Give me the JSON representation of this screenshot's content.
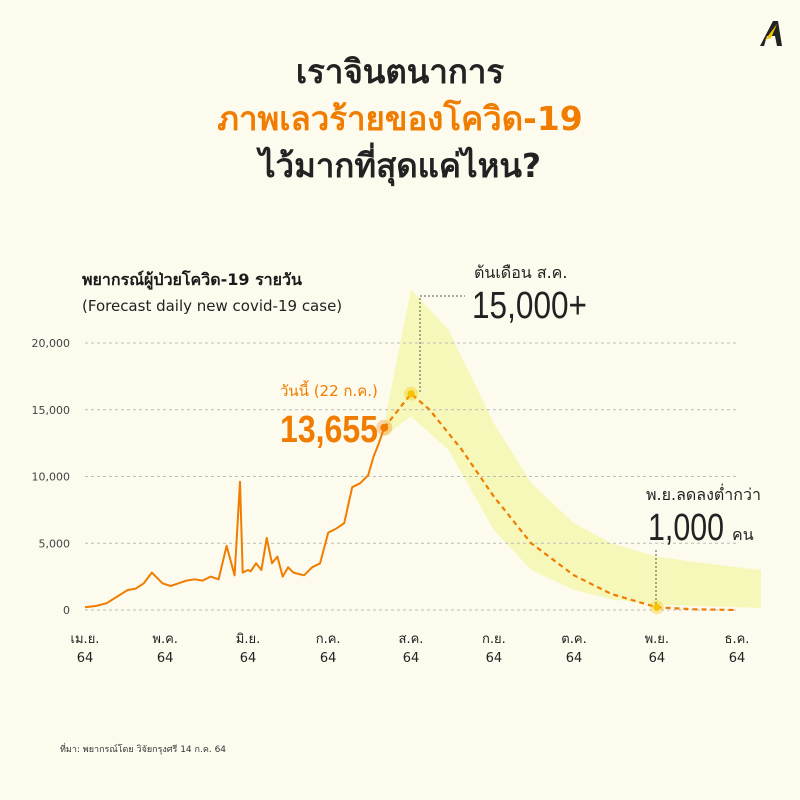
{
  "title": {
    "line1": "เราจินตนาการ",
    "line2": "ภาพเลวร้ายของโควิด-19",
    "line3": "ไว้มากที่สุดแค่ไหน?"
  },
  "subtitle": {
    "thai": "พยากรณ์ผู้ป่วยโควิด-19 รายวัน",
    "english": "(Forecast daily new covid-19 case)"
  },
  "source_note": "ที่มา: พยากรณ์โดย วิจัยกรุงศรี 14 ก.ค. 64",
  "colors": {
    "accent": "#f07c00",
    "forecast_band": "#f5f7b0",
    "background": "#fdfbee",
    "marker_yellow": "#f5c400"
  },
  "annotations": {
    "today_label": "วันนี้ (22 ก.ค.)",
    "today_value": "13,655",
    "peak_label": "ต้นเดือน ส.ค.",
    "peak_value": "15,000+",
    "low_label": "พ.ย.ลดลงต่ำกว่า",
    "low_value": "1,000",
    "low_unit": "คน"
  },
  "chart_data": {
    "type": "line",
    "ylim": [
      0,
      20000
    ],
    "yticks": [
      0,
      5000,
      10000,
      15000,
      20000
    ],
    "ytick_labels": [
      "0",
      "5,000",
      "10,000",
      "15,000",
      "20,000"
    ],
    "xtick_labels": [
      [
        "เม.ย.",
        "64"
      ],
      [
        "พ.ค.",
        "64"
      ],
      [
        "มิ.ย.",
        "64"
      ],
      [
        "ก.ค.",
        "64"
      ],
      [
        "ส.ค.",
        "64"
      ],
      [
        "ก.ย.",
        "64"
      ],
      [
        "ต.ค.",
        "64"
      ],
      [
        "พ.ย.",
        "64"
      ],
      [
        "ธ.ค.",
        "64"
      ]
    ],
    "grid": true,
    "series": [
      {
        "kind": "actual",
        "x": [
          "2021-04-01",
          "2021-04-05",
          "2021-04-09",
          "2021-04-13",
          "2021-04-17",
          "2021-04-20",
          "2021-04-23",
          "2021-04-26",
          "2021-04-30",
          "2021-05-03",
          "2021-05-06",
          "2021-05-09",
          "2021-05-12",
          "2021-05-15",
          "2021-05-18",
          "2021-05-21",
          "2021-05-24",
          "2021-05-27",
          "2021-05-29",
          "2021-05-30",
          "2021-06-01",
          "2021-06-02",
          "2021-06-04",
          "2021-06-06",
          "2021-06-08",
          "2021-06-10",
          "2021-06-12",
          "2021-06-14",
          "2021-06-16",
          "2021-06-18",
          "2021-06-20",
          "2021-06-22",
          "2021-06-25",
          "2021-06-28",
          "2021-07-01",
          "2021-07-04",
          "2021-07-07",
          "2021-07-10",
          "2021-07-13",
          "2021-07-16",
          "2021-07-18",
          "2021-07-20",
          "2021-07-22"
        ],
        "values": [
          200,
          300,
          500,
          1000,
          1500,
          1600,
          2000,
          2800,
          2000,
          1800,
          2000,
          2200,
          2300,
          2200,
          2500,
          2300,
          4800,
          2600,
          9600,
          2800,
          3000,
          2900,
          3500,
          3000,
          5400,
          3500,
          4000,
          2500,
          3200,
          2800,
          2700,
          2600,
          3200,
          3500,
          5800,
          6100,
          6500,
          9200,
          9500,
          10100,
          11500,
          12500,
          13655
        ]
      },
      {
        "kind": "forecast",
        "x": [
          "2021-07-22",
          "2021-08-01",
          "2021-08-08",
          "2021-08-20",
          "2021-09-01",
          "2021-09-15",
          "2021-10-01",
          "2021-10-15",
          "2021-11-01",
          "2021-11-15",
          "2021-12-01"
        ],
        "values": [
          13655,
          16200,
          15000,
          12000,
          8500,
          5000,
          2600,
          1200,
          200,
          50,
          0
        ]
      }
    ],
    "forecast_band": {
      "x": [
        "2021-07-22",
        "2021-08-01",
        "2021-08-15",
        "2021-09-01",
        "2021-09-15",
        "2021-10-01",
        "2021-10-15",
        "2021-11-01",
        "2021-11-15",
        "2021-12-01",
        "2021-12-10"
      ],
      "upper": [
        14000,
        24000,
        21000,
        14000,
        9500,
        6500,
        5000,
        4000,
        3600,
        3200,
        3000
      ],
      "lower": [
        13000,
        14500,
        12000,
        6000,
        3000,
        1500,
        800,
        400,
        300,
        200,
        150
      ]
    }
  }
}
